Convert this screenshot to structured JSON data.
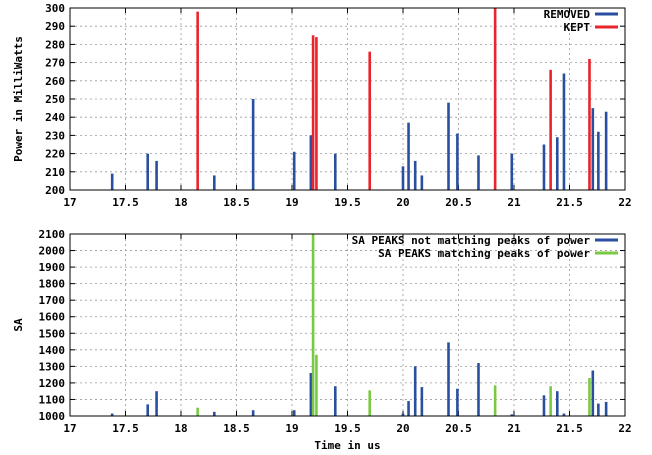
{
  "chart_data": [
    {
      "type": "bar",
      "xlabel": "",
      "ylabel": "Power in MilliWatts",
      "xlim": [
        17,
        22
      ],
      "ylim": [
        200,
        300
      ],
      "xticks": [
        "17",
        "17.5",
        "18",
        "18.5",
        "19",
        "19.5",
        "20",
        "20.5",
        "21",
        "21.5",
        "22"
      ],
      "yticks": [
        "200",
        "210",
        "220",
        "230",
        "240",
        "250",
        "260",
        "270",
        "280",
        "290",
        "300"
      ],
      "grid": true,
      "legend_position": "top-right",
      "series": [
        {
          "name": "REMOVED",
          "color": "#2a4fa0",
          "points": [
            [
              17.38,
              209
            ],
            [
              17.7,
              220
            ],
            [
              17.78,
              216
            ],
            [
              18.3,
              208
            ],
            [
              18.65,
              250
            ],
            [
              19.02,
              221
            ],
            [
              19.17,
              230
            ],
            [
              19.39,
              220
            ],
            [
              20.0,
              213
            ],
            [
              20.05,
              237
            ],
            [
              20.11,
              216
            ],
            [
              20.17,
              208
            ],
            [
              20.41,
              248
            ],
            [
              20.49,
              231
            ],
            [
              20.68,
              219
            ],
            [
              20.98,
              220
            ],
            [
              21.27,
              225
            ],
            [
              21.39,
              229
            ],
            [
              21.45,
              264
            ],
            [
              21.71,
              245
            ],
            [
              21.76,
              232
            ],
            [
              21.83,
              243
            ]
          ]
        },
        {
          "name": "KEPT",
          "color": "#e8242c",
          "points": [
            [
              18.15,
              298
            ],
            [
              19.19,
              285
            ],
            [
              19.22,
              284
            ],
            [
              19.7,
              276
            ],
            [
              20.83,
              300
            ],
            [
              21.33,
              266
            ],
            [
              21.68,
              272
            ]
          ]
        }
      ]
    },
    {
      "type": "bar",
      "xlabel": "Time in us",
      "ylabel": "SA",
      "xlim": [
        17,
        22
      ],
      "ylim": [
        1000,
        2100
      ],
      "xticks": [
        "17",
        "17.5",
        "18",
        "18.5",
        "19",
        "19.5",
        "20",
        "20.5",
        "21",
        "21.5",
        "22"
      ],
      "yticks": [
        "1000",
        "1100",
        "1200",
        "1300",
        "1400",
        "1500",
        "1600",
        "1700",
        "1800",
        "1900",
        "2000",
        "2100"
      ],
      "grid": true,
      "legend_position": "top-right",
      "series": [
        {
          "name": "SA PEAKS not matching peaks of power",
          "color": "#2a4fa0",
          "points": [
            [
              17.38,
              1015
            ],
            [
              17.7,
              1070
            ],
            [
              17.78,
              1150
            ],
            [
              18.3,
              1025
            ],
            [
              18.65,
              1035
            ],
            [
              19.02,
              1035
            ],
            [
              19.17,
              1260
            ],
            [
              19.39,
              1180
            ],
            [
              20.0,
              1015
            ],
            [
              20.05,
              1090
            ],
            [
              20.11,
              1300
            ],
            [
              20.17,
              1175
            ],
            [
              20.41,
              1445
            ],
            [
              20.49,
              1165
            ],
            [
              20.68,
              1320
            ],
            [
              20.98,
              1010
            ],
            [
              21.27,
              1125
            ],
            [
              21.39,
              1150
            ],
            [
              21.45,
              1015
            ],
            [
              21.71,
              1275
            ],
            [
              21.76,
              1075
            ],
            [
              21.83,
              1085
            ]
          ]
        },
        {
          "name": "SA PEAKS matching peaks of power",
          "color": "#7ac943",
          "points": [
            [
              18.15,
              1050
            ],
            [
              19.19,
              2100
            ],
            [
              19.22,
              1370
            ],
            [
              19.7,
              1155
            ],
            [
              20.83,
              1185
            ],
            [
              21.33,
              1180
            ],
            [
              21.68,
              1230
            ]
          ]
        }
      ]
    }
  ]
}
